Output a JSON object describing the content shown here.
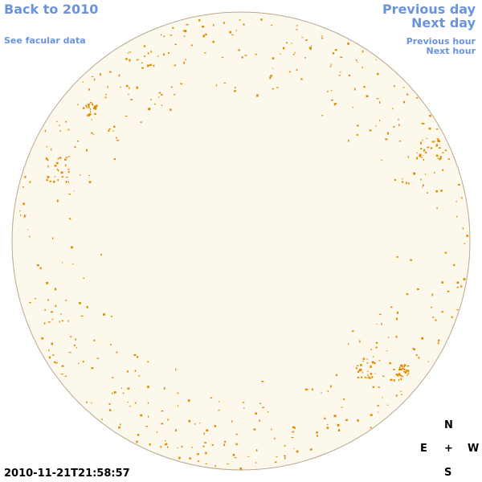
{
  "links": {
    "back": "Back to 2010",
    "facular": "See facular data",
    "prev_day": "Previous day",
    "next_day": "Next day",
    "prev_hour": "Previous hour",
    "next_hour": "Next hour"
  },
  "timestamp": "2010-11-21T21:58:57",
  "compass": {
    "north": "N",
    "east": "E",
    "center": "+",
    "west": "W",
    "south": "S"
  }
}
